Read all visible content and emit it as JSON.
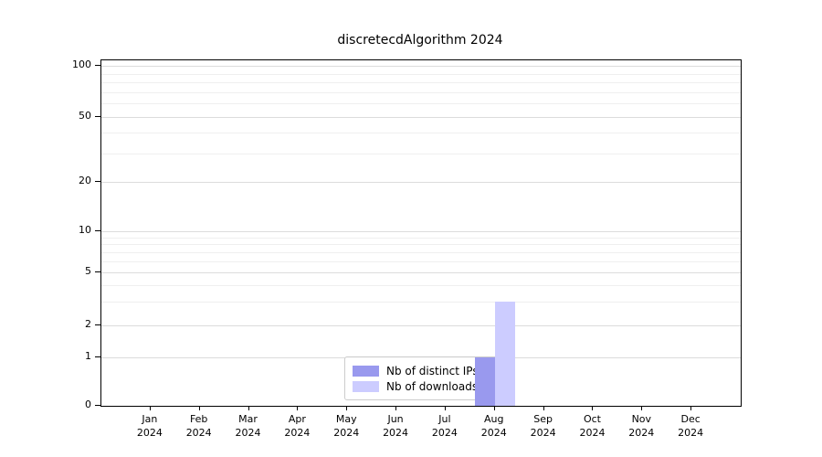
{
  "title": "discretecdAlgorithm 2024",
  "chart_data": {
    "type": "bar",
    "title": "discretecdAlgorithm 2024",
    "xlabel": "",
    "ylabel": "",
    "y_scale": "symlog",
    "ylim": [
      0,
      100
    ],
    "grid": "horizontal, light gray, log minor gridlines on",
    "legend_position": "inside bottom-center",
    "categories": [
      "Jan 2024",
      "Feb 2024",
      "Mar 2024",
      "Apr 2024",
      "May 2024",
      "Jun 2024",
      "Jul 2024",
      "Aug 2024",
      "Sep 2024",
      "Oct 2024",
      "Nov 2024",
      "Dec 2024"
    ],
    "y_ticks": [
      0,
      1,
      2,
      5,
      10,
      20,
      50,
      100
    ],
    "y_minor_ticks": [
      3,
      4,
      6,
      7,
      8,
      9,
      30,
      40,
      60,
      70,
      80,
      90
    ],
    "series": [
      {
        "name": "Nb of distinct IPs",
        "color": "#9999ee",
        "values": [
          0,
          0,
          0,
          0,
          0,
          0,
          0,
          1,
          0,
          0,
          0,
          0
        ]
      },
      {
        "name": "Nb of downloads",
        "color": "#ccccff",
        "values": [
          0,
          0,
          0,
          0,
          0,
          0,
          0,
          3,
          0,
          0,
          0,
          0
        ]
      }
    ]
  }
}
